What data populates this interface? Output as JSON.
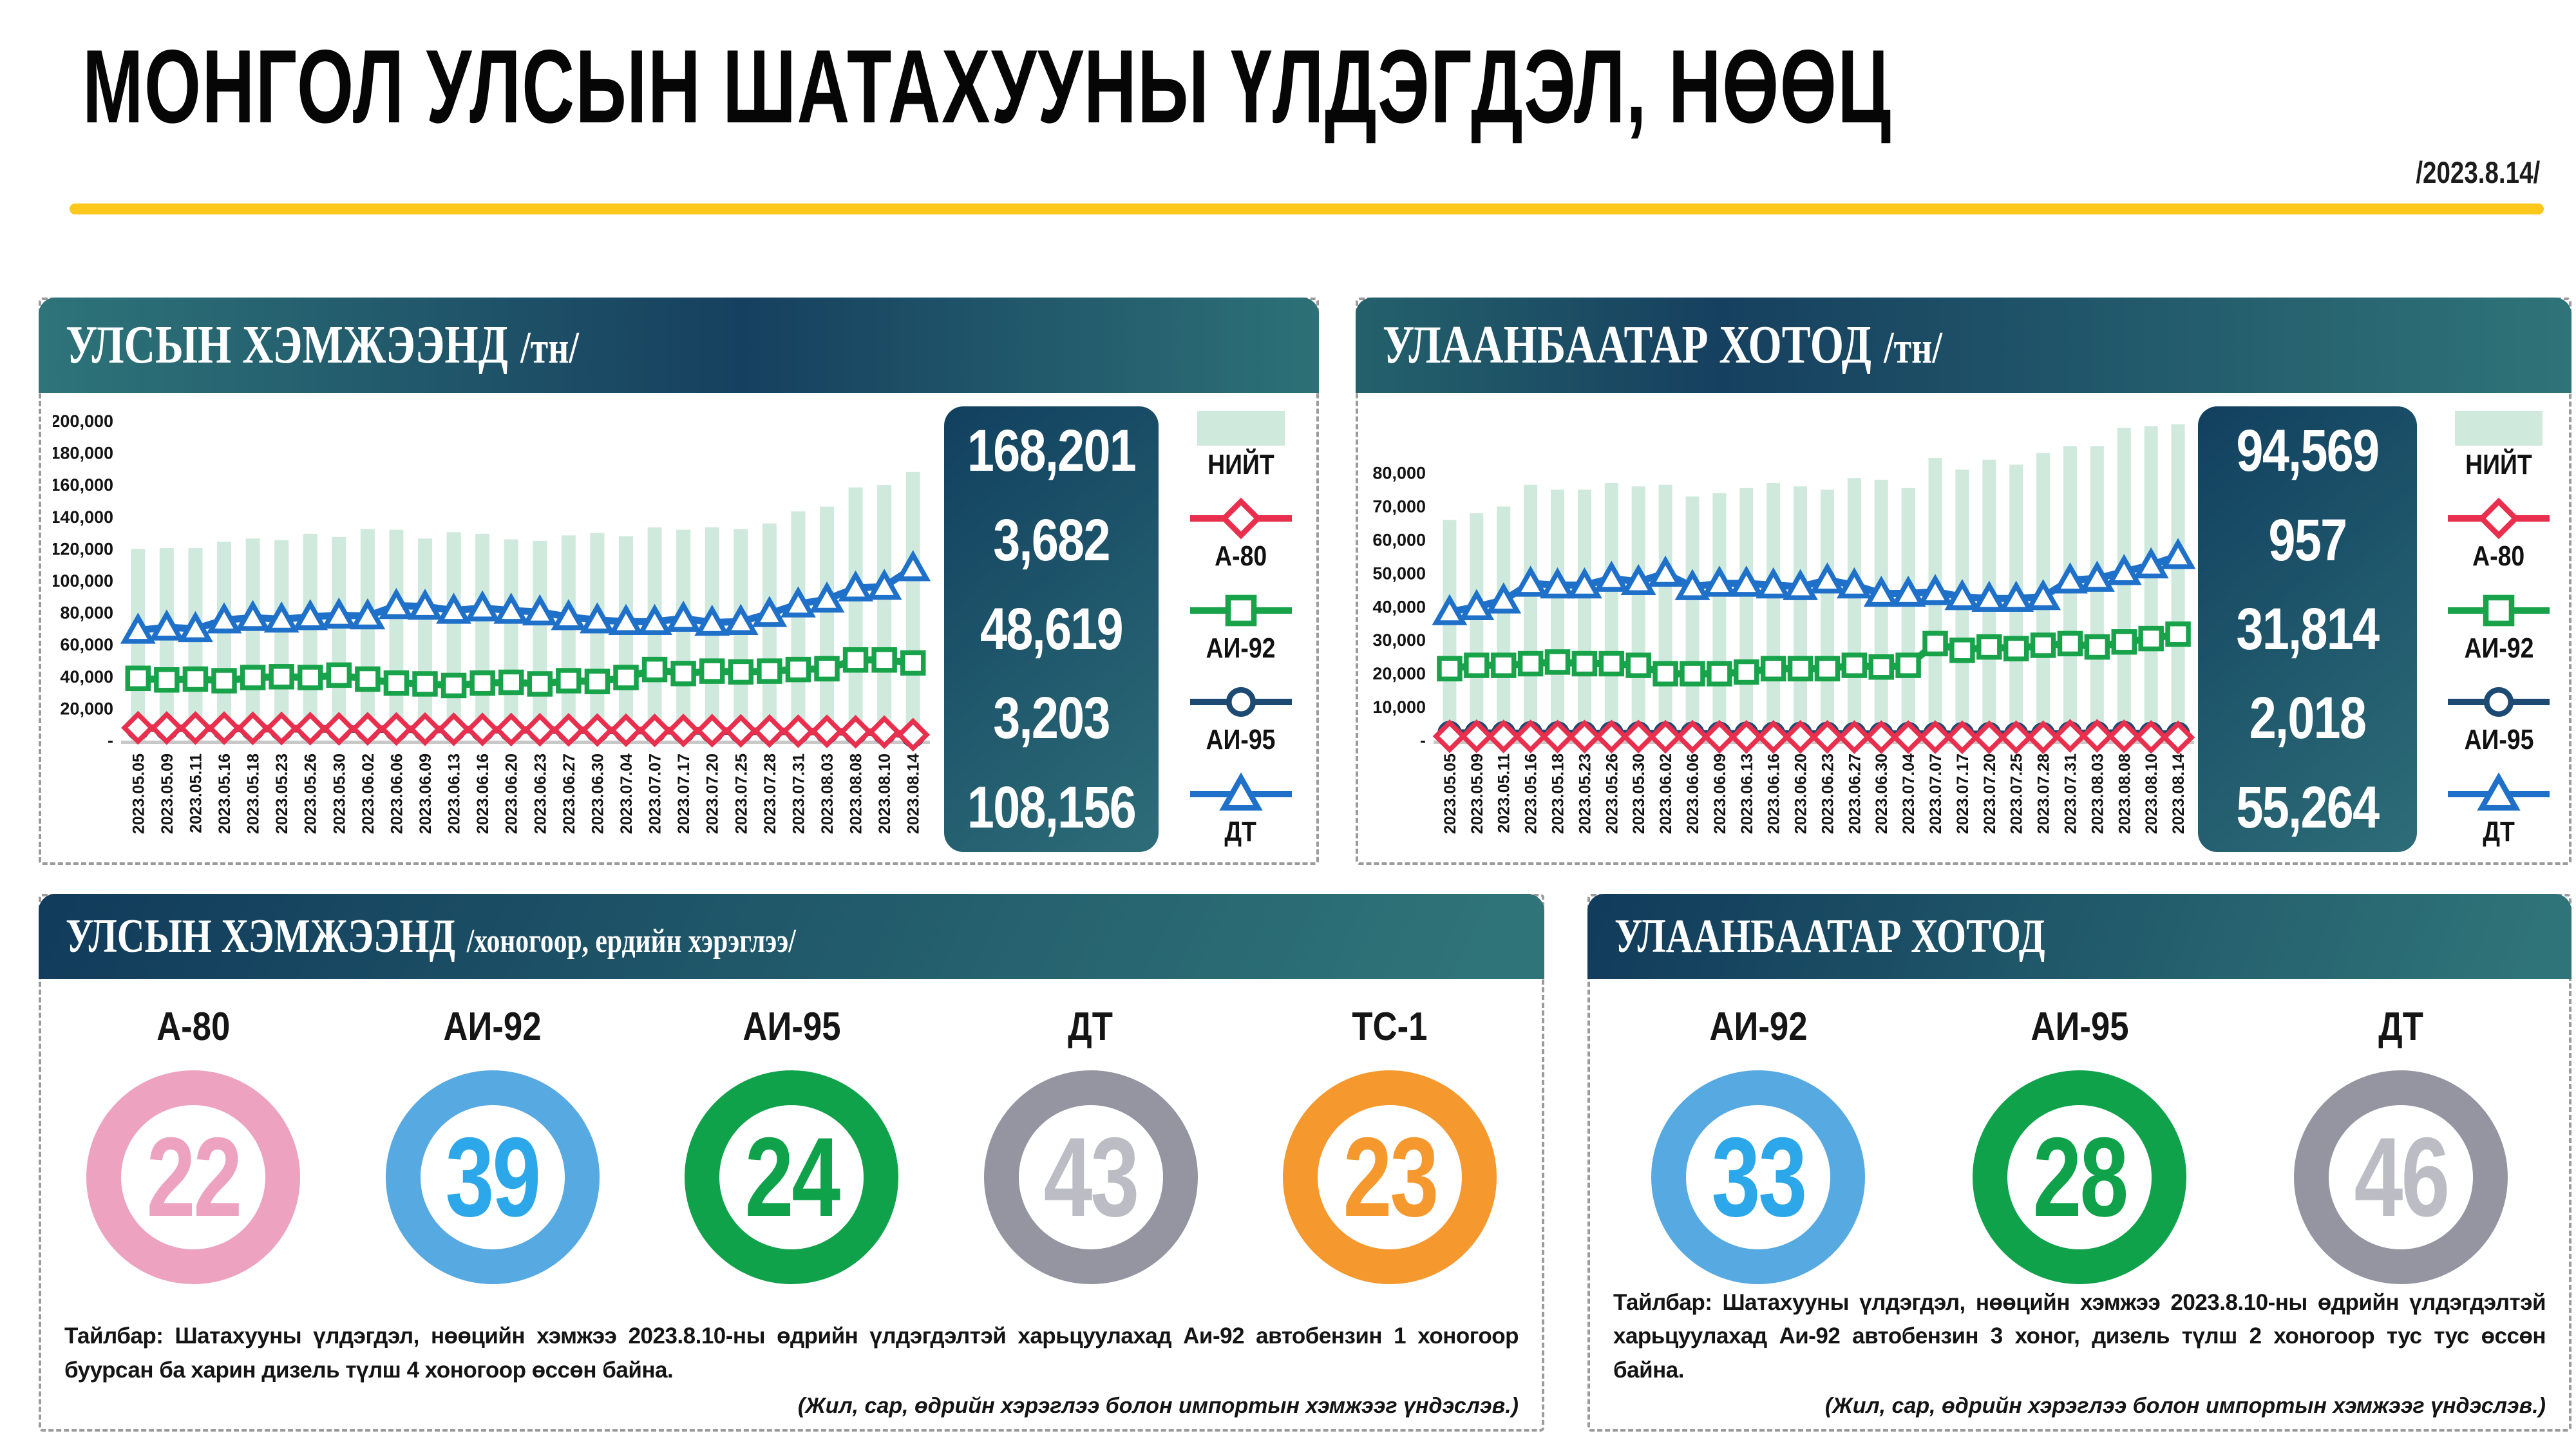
{
  "page": {
    "title": "МОНГОЛ УЛСЫН ШАТАХУУНЫ ҮЛДЭГДЭЛ, НӨӨЦ",
    "date": "/2023.8.14/",
    "accent_color": "#fcc81c"
  },
  "panels": {
    "national_tons": {
      "header": {
        "title": "УЛСЫН ХЭМЖЭЭНД",
        "unit": "/тн/"
      },
      "values": [
        "168,201",
        "3,682",
        "48,619",
        "3,203",
        "108,156"
      ]
    },
    "ub_tons": {
      "header": {
        "title": "УЛААНБААТАР ХОТОД",
        "unit": "/тн/"
      },
      "values": [
        "94,569",
        "957",
        "31,814",
        "2,018",
        "55,264"
      ]
    },
    "national_days": {
      "header": {
        "title": "УЛСЫН ХЭМЖЭЭНД",
        "unit": "/хоногоор, ердийн хэрэглээ/"
      },
      "items": [
        {
          "label": "А-80",
          "value": "22",
          "ring": "#eda3c0",
          "num": "#eda3c0"
        },
        {
          "label": "АИ-92",
          "value": "39",
          "ring": "#57a9e1",
          "num": "#2ba7ea"
        },
        {
          "label": "АИ-95",
          "value": "24",
          "ring": "#10a24b",
          "num": "#10a24b"
        },
        {
          "label": "ДТ",
          "value": "43",
          "ring": "#9495a1",
          "num": "#bcbdc4"
        },
        {
          "label": "ТС-1",
          "value": "23",
          "ring": "#f5982e",
          "num": "#f5982e"
        }
      ],
      "footnote": "Тайлбар: Шатахууны үлдэгдэл, нөөцийн хэмжээ 2023.8.10-ны өдрийн үлдэгдэлтэй харьцуулахад Аи-92 автобензин 1 хоногоор буурсан ба харин дизель түлш 4 хоногоор өссөн байна.",
      "source": "(Жил, сар, өдрийн хэрэглээ болон импортын хэмжээг үндэслэв.)"
    },
    "ub_days": {
      "header": {
        "title": "УЛААНБААТАР ХОТОД",
        "unit": ""
      },
      "items": [
        {
          "label": "АИ-92",
          "value": "33",
          "ring": "#57a9e1",
          "num": "#2ba7ea"
        },
        {
          "label": "АИ-95",
          "value": "28",
          "ring": "#10a24b",
          "num": "#10a24b"
        },
        {
          "label": "ДТ",
          "value": "46",
          "ring": "#9495a1",
          "num": "#bcbdc4"
        }
      ],
      "footnote": "Тайлбар: Шатахууны үлдэгдэл, нөөцийн хэмжээ 2023.8.10-ны өдрийн үлдэгдэлтэй харьцуулахад Аи-92 автобензин 3 хоног, дизель түлш 2 хоногоор тус тус өссөн байна.",
      "source": "(Жил, сар, өдрийн хэрэглээ болон импортын хэмжээг үндэслэв.)"
    }
  },
  "chart_data": [
    {
      "id": "national",
      "type": "bar+line",
      "title": "УЛСЫН ХЭМЖЭЭНД /тн/",
      "legend": [
        "НИЙТ",
        "А-80",
        "АИ-92",
        "АИ-95",
        "ДТ"
      ],
      "legend_position": "right",
      "grid": false,
      "ylim": [
        0,
        200000
      ],
      "y_ticks": [
        0,
        20000,
        40000,
        60000,
        80000,
        100000,
        120000,
        140000,
        160000,
        180000,
        200000
      ],
      "y_plot_max": 200000,
      "categories": [
        "2023.05.05",
        "2023.05.09",
        "2023.05.11",
        "2023.05.16",
        "2023.05.18",
        "2023.05.23",
        "2023.05.26",
        "2023.05.30",
        "2023.06.02",
        "2023.06.06",
        "2023.06.09",
        "2023.06.13",
        "2023.06.16",
        "2023.06.20",
        "2023.06.23",
        "2023.06.27",
        "2023.06.30",
        "2023.07.04",
        "2023.07.07",
        "2023.07.17",
        "2023.07.20",
        "2023.07.25",
        "2023.07.28",
        "2023.07.31",
        "2023.08.03",
        "2023.08.08",
        "2023.08.10",
        "2023.08.14"
      ],
      "bars": {
        "name": "НИЙТ",
        "color": "#cfe9dd",
        "values": [
          120000,
          120500,
          120500,
          124500,
          126500,
          125500,
          129500,
          127500,
          132500,
          132000,
          126500,
          130500,
          129500,
          126000,
          125000,
          128500,
          130000,
          128000,
          133500,
          132000,
          133500,
          132500,
          136000,
          143500,
          146500,
          158500,
          160000,
          168201
        ]
      },
      "series": [
        {
          "name": "А-80",
          "color": "#e8304e",
          "marker": "diamond",
          "values": [
            8000,
            7900,
            7900,
            7800,
            7700,
            7600,
            7500,
            7400,
            7400,
            7300,
            7200,
            7100,
            7000,
            6900,
            6800,
            6700,
            6600,
            6500,
            6400,
            6300,
            6200,
            6100,
            6000,
            5900,
            5800,
            5500,
            5300,
            3682
          ]
        },
        {
          "name": "АИ-92",
          "color": "#18a34b",
          "marker": "square",
          "values": [
            39000,
            38000,
            38500,
            37500,
            39500,
            40000,
            39500,
            41000,
            38500,
            36000,
            35500,
            34500,
            36000,
            36500,
            35500,
            37500,
            37000,
            39500,
            44500,
            42000,
            43500,
            43000,
            43500,
            44500,
            45000,
            50500,
            50500,
            48619
          ]
        },
        {
          "name": "АИ-95",
          "color": "#1c4a73",
          "marker": "circle",
          "values": [
            7700,
            7600,
            7600,
            7500,
            7400,
            7300,
            7200,
            7100,
            7100,
            7000,
            6900,
            6800,
            6700,
            6600,
            6500,
            6400,
            6300,
            6200,
            6100,
            6000,
            5900,
            5800,
            5700,
            5600,
            5500,
            5200,
            5000,
            3203
          ]
        },
        {
          "name": "ДТ",
          "color": "#1f70c9",
          "marker": "triangle",
          "values": [
            69000,
            71000,
            70000,
            75500,
            77000,
            76000,
            77500,
            78500,
            78000,
            84500,
            84000,
            81500,
            83000,
            81500,
            80500,
            77500,
            75500,
            74500,
            74500,
            76500,
            74000,
            74500,
            79500,
            85500,
            88500,
            95500,
            96500,
            108156
          ]
        }
      ],
      "latest_values": [
        "168,201",
        "3,682",
        "48,619",
        "3,203",
        "108,156"
      ]
    },
    {
      "id": "ulaanbaatar",
      "type": "bar+line",
      "title": "УЛААНБААТАР ХОТОД /тн/",
      "legend": [
        "НИЙТ",
        "А-80",
        "АИ-92",
        "АИ-95",
        "ДТ"
      ],
      "legend_position": "right",
      "grid": false,
      "ylim": [
        0,
        80000
      ],
      "y_ticks": [
        0,
        10000,
        20000,
        30000,
        40000,
        50000,
        60000,
        70000,
        80000
      ],
      "y_plot_max": 95500,
      "categories": [
        "2023.05.05",
        "2023.05.09",
        "2023.05.11",
        "2023.05.16",
        "2023.05.18",
        "2023.05.23",
        "2023.05.26",
        "2023.05.30",
        "2023.06.02",
        "2023.06.06",
        "2023.06.09",
        "2023.06.13",
        "2023.06.16",
        "2023.06.20",
        "2023.06.23",
        "2023.06.27",
        "2023.06.30",
        "2023.07.04",
        "2023.07.07",
        "2023.07.17",
        "2023.07.20",
        "2023.07.25",
        "2023.07.28",
        "2023.07.31",
        "2023.08.03",
        "2023.08.08",
        "2023.08.10",
        "2023.08.14"
      ],
      "bars": {
        "name": "НИЙТ",
        "color": "#cfe9dd",
        "values": [
          66000,
          68000,
          70000,
          76500,
          75000,
          75000,
          77000,
          76000,
          76500,
          73000,
          74000,
          75500,
          77000,
          76000,
          75000,
          78500,
          78000,
          75500,
          84500,
          81000,
          84000,
          82500,
          86000,
          88000,
          88000,
          93500,
          94000,
          94569
        ]
      },
      "series": [
        {
          "name": "А-80",
          "color": "#e8304e",
          "marker": "diamond",
          "values": [
            1300,
            1300,
            1250,
            1250,
            1200,
            1200,
            1200,
            1200,
            1150,
            1150,
            1150,
            1100,
            1100,
            1100,
            1100,
            1050,
            1050,
            1050,
            1050,
            1000,
            1000,
            1000,
            1000,
            1400,
            1400,
            1300,
            1100,
            957
          ]
        },
        {
          "name": "АИ-92",
          "color": "#18a34b",
          "marker": "square",
          "values": [
            21500,
            22500,
            22500,
            23000,
            23500,
            23000,
            23000,
            22500,
            20000,
            20000,
            20000,
            20500,
            21500,
            21500,
            21500,
            22500,
            22000,
            22500,
            29000,
            27000,
            28000,
            27500,
            28500,
            29000,
            28000,
            29500,
            30500,
            31814
          ]
        },
        {
          "name": "АИ-95",
          "color": "#1c4a73",
          "marker": "circle",
          "values": [
            2300,
            2300,
            2250,
            2250,
            2200,
            2200,
            2200,
            2150,
            2150,
            2100,
            2100,
            2100,
            2050,
            2050,
            2050,
            2000,
            2000,
            2000,
            2000,
            1950,
            1950,
            1950,
            1900,
            2200,
            2250,
            2300,
            2050,
            2018
          ]
        },
        {
          "name": "ДТ",
          "color": "#1f70c9",
          "marker": "triangle",
          "values": [
            38500,
            40000,
            42000,
            47000,
            46500,
            46500,
            48500,
            47500,
            50000,
            46000,
            47000,
            47000,
            46500,
            46000,
            48000,
            46500,
            44000,
            44000,
            44500,
            43000,
            42500,
            42500,
            43000,
            48000,
            48500,
            50500,
            52500,
            55264
          ]
        }
      ],
      "latest_values": [
        "94,569",
        "957",
        "31,814",
        "2,018",
        "55,264"
      ]
    }
  ]
}
